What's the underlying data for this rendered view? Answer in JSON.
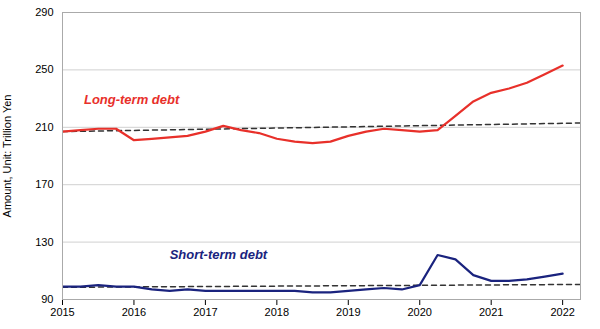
{
  "chart_data": {
    "type": "line",
    "ylabel": "Amount, Unit: Trillion Yen",
    "xlim": [
      2015.0,
      2022.25
    ],
    "xticks": [
      2015,
      2016,
      2017,
      2018,
      2019,
      2020,
      2021,
      2022
    ],
    "ylim": [
      90,
      290
    ],
    "yticks": [
      90,
      130,
      170,
      210,
      250,
      290
    ],
    "grid": "y",
    "series": [
      {
        "color": "#333333",
        "line_style": "dashed",
        "x": [
          2015.0,
          2022.25
        ],
        "values": [
          207,
          213
        ]
      },
      {
        "color": "#333333",
        "line_style": "dashed",
        "x": [
          2015.0,
          2022.25
        ],
        "values": [
          98.5,
          100.5
        ]
      },
      {
        "color": "#e8302a",
        "line_style": "solid",
        "x": [
          2015.0,
          2015.25,
          2015.5,
          2015.75,
          2016.0,
          2016.25,
          2016.5,
          2016.75,
          2017.0,
          2017.25,
          2017.5,
          2017.75,
          2018.0,
          2018.25,
          2018.5,
          2018.75,
          2019.0,
          2019.25,
          2019.5,
          2019.75,
          2020.0,
          2020.25,
          2020.5,
          2020.75,
          2021.0,
          2021.25,
          2021.5,
          2021.75,
          2022.0
        ],
        "values": [
          207,
          208,
          209,
          209,
          201,
          202,
          203,
          204,
          207,
          211,
          208,
          206,
          202,
          200,
          199,
          200,
          204,
          207,
          209,
          208,
          207,
          208,
          218,
          228,
          234,
          237,
          241,
          247,
          253
        ]
      },
      {
        "color": "#1a237e",
        "line_style": "solid",
        "x": [
          2015.0,
          2015.25,
          2015.5,
          2015.75,
          2016.0,
          2016.25,
          2016.5,
          2016.75,
          2017.0,
          2017.25,
          2017.5,
          2017.75,
          2018.0,
          2018.25,
          2018.5,
          2018.75,
          2019.0,
          2019.25,
          2019.5,
          2019.75,
          2020.0,
          2020.25,
          2020.5,
          2020.75,
          2021.0,
          2021.25,
          2021.5,
          2021.75,
          2022.0
        ],
        "values": [
          99,
          99,
          100,
          99,
          99,
          97,
          96,
          97,
          96,
          96,
          96,
          96,
          96,
          96,
          95,
          95,
          96,
          97,
          98,
          97,
          100,
          121,
          118,
          107,
          103,
          103,
          104,
          106,
          108
        ]
      }
    ],
    "annotations": [
      {
        "text": "Long-term debt",
        "x": 2015.3,
        "y": 226,
        "color": "#e8302a"
      },
      {
        "text": "Short-term debt",
        "x": 2016.5,
        "y": 118,
        "color": "#1a237e"
      }
    ]
  }
}
